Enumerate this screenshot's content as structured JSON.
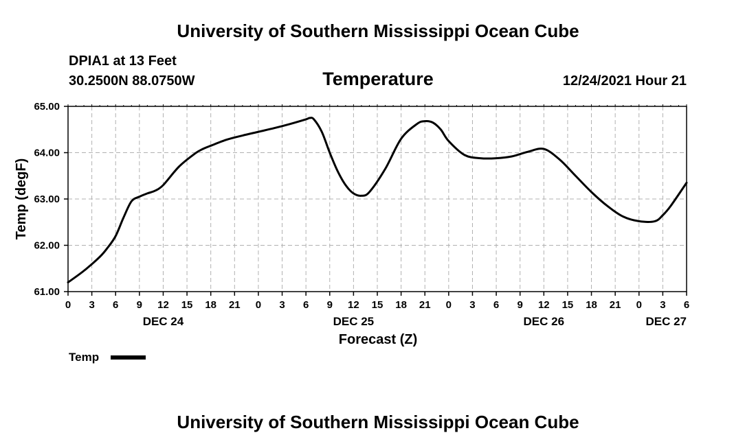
{
  "header": {
    "title": "University of Southern Mississippi Ocean Cube",
    "station": "DPIA1 at 13 Feet",
    "coords": "30.2500N  88.0750W",
    "timestamp": "12/24/2021 Hour 21"
  },
  "footer": {
    "title": "University of Southern Mississippi Ocean Cube"
  },
  "chart_data": {
    "type": "line",
    "title": "Temperature",
    "xlabel": "Forecast (Z)",
    "ylabel": "Temp (degF)",
    "ylim": [
      61.0,
      65.0
    ],
    "y_ticks": [
      "61.00",
      "62.00",
      "63.00",
      "64.00",
      "65.00"
    ],
    "y_tick_values": [
      61.0,
      62.0,
      63.0,
      64.0,
      65.0
    ],
    "xlim": [
      0,
      78
    ],
    "x_hour_labels": [
      "0",
      "3",
      "6",
      "9",
      "12",
      "15",
      "18",
      "21",
      "0",
      "3",
      "6",
      "9",
      "12",
      "15",
      "18",
      "21",
      "0",
      "3",
      "6",
      "9",
      "12",
      "15",
      "18",
      "21",
      "0",
      "3",
      "6"
    ],
    "x_date_labels": [
      {
        "label": "DEC 24",
        "hour": 12
      },
      {
        "label": "DEC 25",
        "hour": 36
      },
      {
        "label": "DEC 26",
        "hour": 60
      },
      {
        "label": "DEC 27",
        "hour": 78
      }
    ],
    "grid": true,
    "series": [
      {
        "name": "Temp",
        "x": [
          0,
          2,
          4,
          5,
          6,
          7,
          8,
          9,
          10,
          11,
          12,
          14,
          16,
          17,
          18,
          20,
          22,
          24,
          26,
          28,
          30,
          30.5,
          31,
          32,
          33,
          34,
          35,
          36,
          37,
          38,
          40,
          42,
          44,
          45,
          46,
          47,
          48,
          50,
          52,
          54,
          56,
          58,
          60,
          62,
          64,
          66,
          68,
          70,
          72,
          74,
          75,
          76,
          78
        ],
        "values": [
          61.2,
          61.45,
          61.75,
          61.95,
          62.2,
          62.6,
          62.95,
          63.05,
          63.12,
          63.18,
          63.3,
          63.7,
          63.98,
          64.08,
          64.15,
          64.28,
          64.37,
          64.45,
          64.53,
          64.62,
          64.72,
          64.75,
          64.72,
          64.45,
          64.0,
          63.6,
          63.3,
          63.12,
          63.07,
          63.15,
          63.65,
          64.3,
          64.62,
          64.68,
          64.65,
          64.5,
          64.25,
          63.95,
          63.88,
          63.88,
          63.92,
          64.02,
          64.08,
          63.85,
          63.5,
          63.15,
          62.85,
          62.62,
          62.52,
          62.52,
          62.65,
          62.85,
          63.35
        ]
      }
    ],
    "legend": {
      "label": "Temp",
      "position": "bottom-left"
    }
  },
  "colors": {
    "line": "#000000",
    "grid": "#b0b0b0",
    "background": "#ffffff"
  }
}
